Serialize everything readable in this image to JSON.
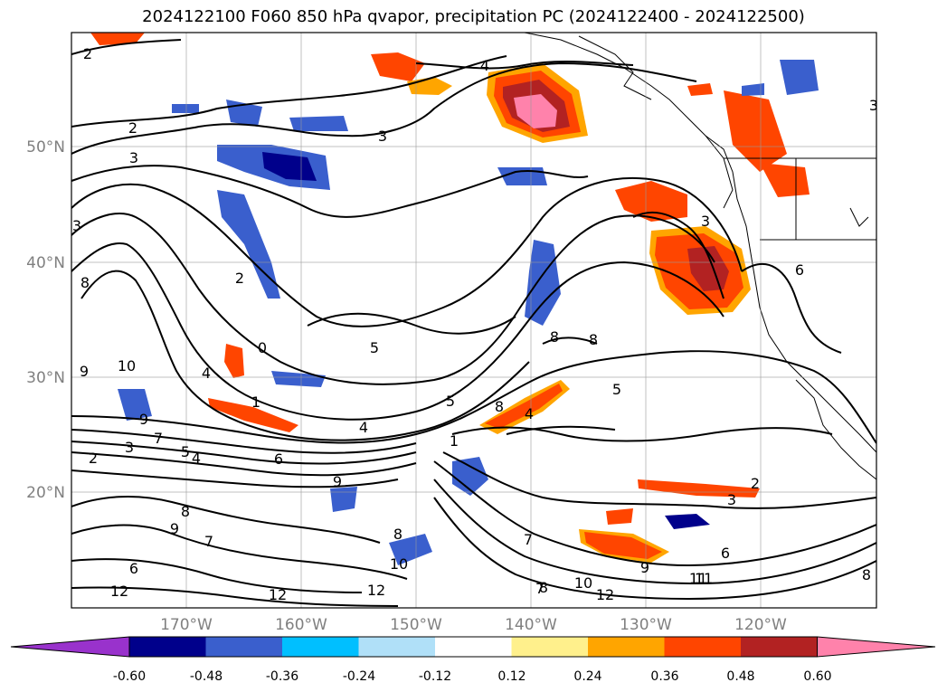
{
  "title": "2024122100 F060 850 hPa qvapor, precipitation PC (2024122400 - 2024122500)",
  "lat_labels": [
    "50°N",
    "40°N",
    "30°N",
    "20°N"
  ],
  "lon_labels": [
    "170°W",
    "160°W",
    "150°W",
    "140°W",
    "130°W",
    "120°W"
  ],
  "colorbar": {
    "ticks": [
      "-0.60",
      "-0.48",
      "-0.36",
      "-0.24",
      "-0.12",
      "0.12",
      "0.24",
      "0.36",
      "0.48",
      "0.60"
    ],
    "colors": [
      "#9932cc",
      "#00008b",
      "#3a5fcd",
      "#00bfff",
      "#b0e0f8",
      "#ffffff",
      "#fff08c",
      "#ffa500",
      "#ff4500",
      "#b22222",
      "#ff82ab"
    ],
    "extend": "both"
  },
  "contour_labels": [
    "2",
    "3",
    "2",
    "3",
    "4",
    "4",
    "3",
    "3",
    "3",
    "5",
    "2",
    "0",
    "4",
    "8",
    "1",
    "5",
    "4",
    "8",
    "8",
    "8",
    "6",
    "5",
    "9",
    "10",
    "9",
    "9",
    "7",
    "3",
    "5",
    "4",
    "2",
    "6",
    "7",
    "8",
    "2",
    "3",
    "1",
    "7",
    "8",
    "9",
    "7",
    "6",
    "8",
    "10",
    "12",
    "12",
    "12",
    "10",
    "11",
    "12",
    "9",
    "6",
    "11",
    "8"
  ]
}
